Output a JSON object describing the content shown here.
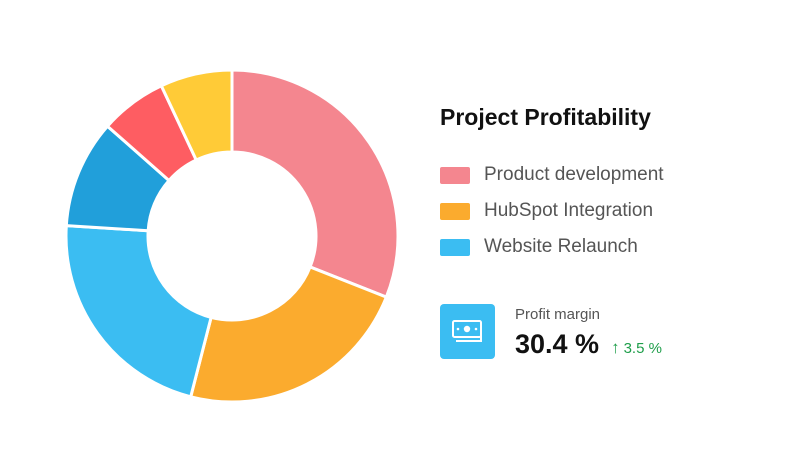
{
  "chart_data": {
    "type": "pie",
    "title": "Project Profitability",
    "legend": [
      "Product development",
      "HubSpot Integration",
      "Website Relaunch"
    ],
    "legend_position": "right",
    "slices": [
      {
        "value": 31.0,
        "color": "#f4868f"
      },
      {
        "value": 23.0,
        "color": "#fbab2e"
      },
      {
        "value": 22.0,
        "color": "#3bbdf2"
      },
      {
        "value": 10.5,
        "color": "#219fda"
      },
      {
        "value": 6.5,
        "color": "#fe5d62"
      },
      {
        "value": 7.0,
        "color": "#ffcb37"
      }
    ]
  },
  "legend_colors": [
    "#f4868f",
    "#fbab2e",
    "#3bbdf2"
  ],
  "kpi": {
    "label": "Profit margin",
    "value": "30.4 %",
    "change": "3.5 %",
    "change_direction": "up",
    "icon": "money-icon",
    "icon_bg": "#3bbdf2",
    "positive_color": "#1e9e4a"
  }
}
